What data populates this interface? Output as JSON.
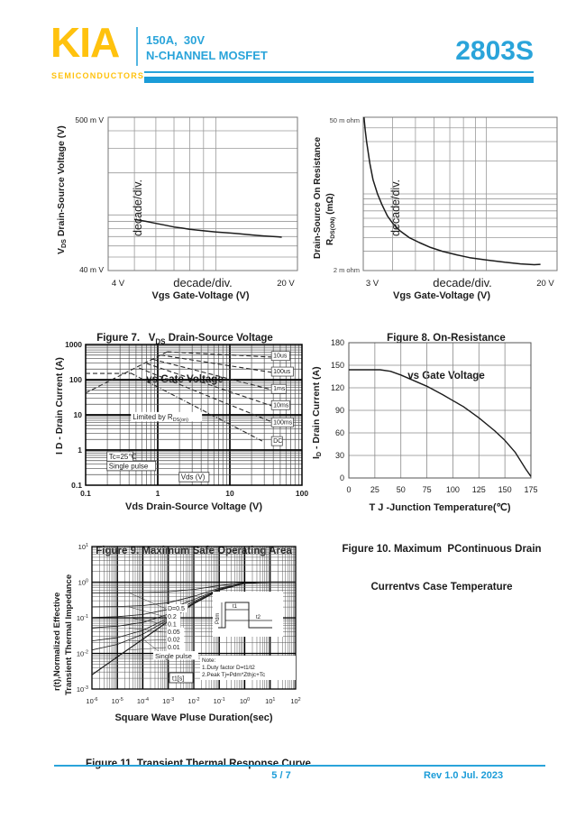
{
  "header": {
    "logo": "KIA",
    "logo_sub": "SEMICONDUCTORS",
    "spec_line1": "150A,  30V",
    "spec_line2": "N-CHANNEL MOSFET",
    "part_number": "2803S",
    "colors": {
      "blue": "#2AA4DA",
      "dark_blue": "#1B9CD8",
      "yellow": "#FFC20E"
    }
  },
  "footer": {
    "page_number": "5 / 7",
    "revision": "Rev 1.0 Jul. 2023"
  },
  "chart_data": [
    {
      "id": "fig7",
      "type": "line",
      "scale": "log-log",
      "x_range": [
        4,
        20
      ],
      "y_range": [
        0.04,
        0.5
      ],
      "corner_labels": {
        "top_left": "500 m V",
        "bottom_left": "40 m V"
      },
      "x_axis_row": {
        "left": "4  V",
        "mid": "decade/div.",
        "right": "20  V"
      },
      "xlabel": "Vgs Gate-Voltage (V)",
      "ylabel": {
        "pre": "V",
        "sub": "DS",
        "post": " Drain-Source Voltage (V)"
      },
      "ylabel_inner": "decade/div.",
      "caption": {
        "line1_pre": "Figure 7.   V",
        "line1_sub": "DS",
        "line1_post": " Drain-Source Voltage",
        "line2": "vs Gate Voltage"
      },
      "series": [
        {
          "name": "vds-vs-vgs",
          "points": [
            [
              5,
              0.093
            ],
            [
              5.5,
              0.09
            ],
            [
              6,
              0.087
            ],
            [
              6.5,
              0.0845
            ],
            [
              7,
              0.082
            ],
            [
              7.5,
              0.0805
            ],
            [
              8,
              0.079
            ],
            [
              9,
              0.077
            ],
            [
              10,
              0.0755
            ],
            [
              11,
              0.0745
            ],
            [
              12,
              0.0735
            ],
            [
              13,
              0.0725
            ],
            [
              14,
              0.0715
            ],
            [
              15,
              0.0708
            ],
            [
              16,
              0.0702
            ],
            [
              17,
              0.0697
            ],
            [
              17.5,
              0.0693
            ]
          ]
        }
      ]
    },
    {
      "id": "fig8",
      "type": "line",
      "scale": "log-log",
      "x_range": [
        3,
        20
      ],
      "y_range": [
        2,
        50
      ],
      "corner_labels": {
        "top_left": "50 m ohm",
        "bottom_left": "2 m ohm"
      },
      "x_axis_row": {
        "left": "3  V",
        "mid": "decade/div.",
        "right": "20  V"
      },
      "xlabel": "Vgs Gate-Voltage (V)",
      "ylabel_line1": {
        "pre": "R",
        "sub": "DS(ON)",
        "post": " (mΩ)"
      },
      "ylabel_line2": "Drain-Source On Resistance",
      "ylabel_inner": "decade/div.",
      "caption": {
        "line1": "Figure 8. On-Resistance",
        "line2": "vs Gate Voltage"
      },
      "series": [
        {
          "name": "rdson-vs-vgs",
          "points": [
            [
              3.02,
              50
            ],
            [
              3.06,
              38
            ],
            [
              3.1,
              30
            ],
            [
              3.2,
              19
            ],
            [
              3.3,
              13.5
            ],
            [
              3.45,
              10
            ],
            [
              3.6,
              8
            ],
            [
              3.8,
              6.3
            ],
            [
              4.0,
              5.4
            ],
            [
              4.3,
              4.6
            ],
            [
              4.7,
              4.0
            ],
            [
              5.2,
              3.6
            ],
            [
              5.8,
              3.25
            ],
            [
              6.5,
              3.0
            ],
            [
              7.5,
              2.78
            ],
            [
              8.5,
              2.62
            ],
            [
              10,
              2.5
            ],
            [
              12,
              2.38
            ],
            [
              14,
              2.3
            ],
            [
              16,
              2.26
            ],
            [
              17,
              2.28
            ]
          ]
        }
      ]
    },
    {
      "id": "fig9",
      "type": "line",
      "scale": "log-log",
      "x_range": [
        0.1,
        100
      ],
      "y_range": [
        0.1,
        1000
      ],
      "x_ticks": [
        0.1,
        1,
        10,
        100
      ],
      "y_ticks": [
        1000,
        100,
        10,
        1,
        0.1
      ],
      "xlabel": "Vds Drain-Source Voltage (V)",
      "ylabel": "I D - Drain Current (A)",
      "caption": {
        "line1": "Figure 9. Maximum Safe Operating Area"
      },
      "series": [
        {
          "name": "rdson-limit",
          "dash": "5,3",
          "points": [
            [
              0.1,
              42
            ],
            [
              1.35,
              620
            ]
          ]
        },
        {
          "name": "current-plateau",
          "dash": "5,3",
          "points": [
            [
              0.1,
              150
            ],
            [
              0.42,
              150
            ]
          ]
        },
        {
          "name": "pulse-10us",
          "dash": "5,3",
          "points": [
            [
              1.35,
              620
            ],
            [
              60,
              420
            ]
          ]
        },
        {
          "name": "pulse-100us",
          "dash": "5,3",
          "points": [
            [
              1.1,
              500
            ],
            [
              60,
              140
            ]
          ]
        },
        {
          "name": "pulse-1ms",
          "dash": "5,3",
          "points": [
            [
              0.85,
              380
            ],
            [
              50,
              45
            ]
          ]
        },
        {
          "name": "pulse-10ms",
          "dash": "5,3",
          "points": [
            [
              0.7,
              290
            ],
            [
              45,
              16
            ]
          ]
        },
        {
          "name": "pulse-100ms",
          "dash": "5,3",
          "points": [
            [
              0.55,
              215
            ],
            [
              42,
              5.8
            ]
          ]
        },
        {
          "name": "dc-curve",
          "dash": "5,2,1,2",
          "points": [
            [
              0.42,
              155
            ],
            [
              28,
              1.8
            ]
          ]
        }
      ],
      "curve_labels": [
        {
          "text": "10us",
          "x": 40,
          "y": 500,
          "boxed": true
        },
        {
          "text": "100us",
          "x": 40,
          "y": 180,
          "boxed": true
        },
        {
          "text": "1ms",
          "x": 40,
          "y": 58,
          "boxed": true
        },
        {
          "text": "10ms",
          "x": 40,
          "y": 20,
          "boxed": true
        },
        {
          "text": "100ms",
          "x": 40,
          "y": 6.5,
          "boxed": true
        },
        {
          "text": "DC",
          "x": 40,
          "y": 1.9,
          "boxed": true
        }
      ],
      "annotations": [
        {
          "pre": "Limited by R",
          "sub": "DS(on)",
          "x": 0.45,
          "y": 7.5,
          "boxed": false
        },
        {
          "pre": "Tc=25℃",
          "sub": "",
          "x": 0.21,
          "y": 0.56,
          "boxed": true
        },
        {
          "pre": "Single pulse",
          "sub": "",
          "x": 0.21,
          "y": 0.3,
          "boxed": true
        },
        {
          "pre": "Vds (V)",
          "sub": "",
          "x": 2.1,
          "y": 0.145,
          "boxed": true
        }
      ]
    },
    {
      "id": "fig10",
      "type": "line",
      "scale": "linear",
      "x_range": [
        0,
        175
      ],
      "y_range": [
        0,
        180
      ],
      "x_ticks": [
        0,
        25,
        50,
        75,
        100,
        125,
        150,
        175
      ],
      "y_ticks": [
        180,
        150,
        120,
        90,
        60,
        30,
        0
      ],
      "xlabel": "T J -Junction Temperature(℃)",
      "ylabel": {
        "pre": "I",
        "sub": "D",
        "post": " - Drain Current (A)"
      },
      "caption": {
        "line1": "Figure 10. Maximum  PContinuous Drain",
        "line2": "Currentvs Case Temperature"
      },
      "series": [
        {
          "name": "id-vs-tj",
          "points": [
            [
              0,
              144
            ],
            [
              30,
              144
            ],
            [
              40,
              142
            ],
            [
              50,
              137
            ],
            [
              60,
              131
            ],
            [
              75,
              122
            ],
            [
              90,
              111
            ],
            [
              100,
              103
            ],
            [
              110,
              95
            ],
            [
              125,
              80
            ],
            [
              140,
              63
            ],
            [
              150,
              50
            ],
            [
              160,
              34
            ],
            [
              170,
              12
            ],
            [
              175,
              2
            ]
          ]
        }
      ]
    },
    {
      "id": "fig11",
      "type": "line",
      "scale": "log-log",
      "x_range": [
        1e-06,
        100
      ],
      "y_range": [
        0.001,
        10
      ],
      "x_exponents": [
        -6,
        -5,
        -4,
        -3,
        -2,
        -1,
        0,
        1,
        2
      ],
      "y_exponents": [
        1,
        0,
        -1,
        -2,
        -3
      ],
      "xlabel": "Square Wave Pluse Duration(sec)",
      "ylabel_line1": "r(t),Normalized Effective",
      "ylabel_line2": "Transient Thermal Impedance",
      "caption": {
        "line1": "Figure 11. Transient Thermal Response Curve"
      },
      "x_values": [
        1e-06,
        1e-05,
        0.0001,
        0.001,
        0.01,
        0.1,
        1,
        10,
        100
      ],
      "series": [
        {
          "name": "duty-0.5",
          "label": "D=0.5",
          "values": [
            0.501,
            0.504,
            0.513,
            0.54,
            0.625,
            0.8,
            0.965,
            1,
            1
          ]
        },
        {
          "name": "duty-0.2",
          "label": "0.2",
          "values": [
            0.202,
            0.206,
            0.22,
            0.264,
            0.4,
            0.68,
            0.944,
            1,
            1
          ]
        },
        {
          "name": "duty-0.1",
          "label": "0.1",
          "values": [
            0.102,
            0.107,
            0.123,
            0.172,
            0.325,
            0.64,
            0.937,
            1,
            1
          ]
        },
        {
          "name": "duty-0.05",
          "label": "0.05",
          "values": [
            0.052,
            0.058,
            0.074,
            0.126,
            0.288,
            0.62,
            0.934,
            1,
            1
          ]
        },
        {
          "name": "duty-0.02",
          "label": "0.02",
          "values": [
            0.0225,
            0.0278,
            0.0445,
            0.098,
            0.265,
            0.608,
            0.931,
            1,
            1
          ]
        },
        {
          "name": "duty-0.01",
          "label": "0.01",
          "values": [
            0.0125,
            0.0179,
            0.0347,
            0.089,
            0.257,
            0.604,
            0.93,
            1,
            1
          ]
        },
        {
          "name": "single-pulse",
          "label": "Single pulse",
          "values": [
            0.0025,
            0.008,
            0.025,
            0.08,
            0.25,
            0.6,
            0.93,
            1,
            1
          ]
        }
      ],
      "t1_label": "t1[s]",
      "note_lines": [
        "Note:",
        "1.Duty factor D=t1/t2",
        "2.Peak Tj=Pdm*Zthjc+Tc"
      ],
      "inset_labels": {
        "pdm": "Pdm",
        "t1": "t1",
        "t2": "t2"
      }
    }
  ]
}
